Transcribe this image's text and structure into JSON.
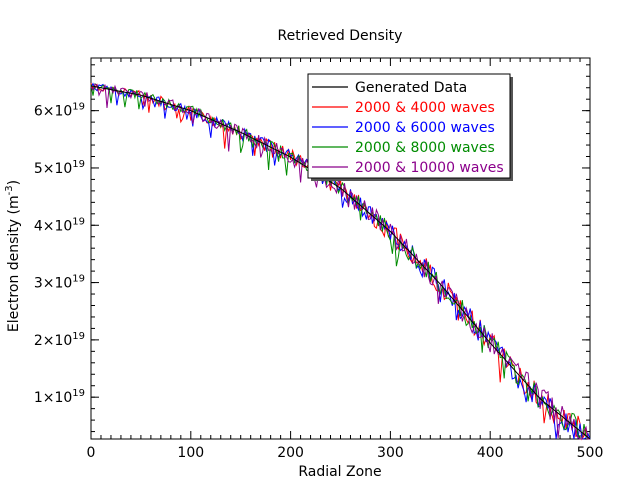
{
  "chart_data": {
    "type": "line",
    "title": "Retrieved Density",
    "xlabel": "Radial Zone",
    "ylabel": "Electron density (m",
    "ylabel_sup": "-3",
    "ylabel_end": ")",
    "xlim": [
      0,
      500
    ],
    "ylim": [
      0.05,
      1.28
    ],
    "y_unit_exponent": "19",
    "x_ticks": [
      0,
      100,
      200,
      300,
      400,
      500
    ],
    "y_ticks": [
      {
        "value": 0.185,
        "label": "1×10",
        "sup": "19"
      },
      {
        "value": 0.37,
        "label": "2×10",
        "sup": "19"
      },
      {
        "value": 0.555,
        "label": "3×10",
        "sup": "19"
      },
      {
        "value": 0.74,
        "label": "4×10",
        "sup": "19"
      },
      {
        "value": 0.925,
        "label": "5×10",
        "sup": "19"
      },
      {
        "value": 1.11,
        "label": "6×10",
        "sup": "19"
      }
    ],
    "legend_position": "top-right",
    "grid": false,
    "base_profile": {
      "x": [
        0,
        50,
        100,
        150,
        200,
        250,
        300,
        350,
        400,
        450,
        500
      ],
      "y": [
        1.19,
        1.16,
        1.11,
        1.04,
        0.96,
        0.86,
        0.72,
        0.55,
        0.36,
        0.18,
        0.05
      ]
    },
    "series": [
      {
        "name": "Generated Data",
        "color": "#000000",
        "noise": 0.0
      },
      {
        "name": "2000 & 4000 waves",
        "color": "#ff0000",
        "noise": 1.0
      },
      {
        "name": "2000 & 6000 waves",
        "color": "#0000ff",
        "noise": 0.95
      },
      {
        "name": "2000 & 8000 waves",
        "color": "#008c00",
        "noise": 0.9
      },
      {
        "name": "2000 & 10000 waves",
        "color": "#8b008b",
        "noise": 1.0
      }
    ]
  }
}
